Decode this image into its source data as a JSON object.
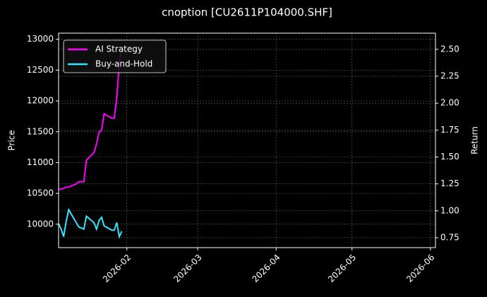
{
  "chart_data": {
    "type": "line",
    "title": "cnoption [CU2611P104000.SHF]",
    "ylabel": "Price",
    "y2label": "Return",
    "x": [
      "2026-01-05",
      "2026-01-06",
      "2026-01-07",
      "2026-01-08",
      "2026-01-09",
      "2026-01-12",
      "2026-01-13",
      "2026-01-14",
      "2026-01-15",
      "2026-01-16",
      "2026-01-19",
      "2026-01-20",
      "2026-01-21",
      "2026-01-22",
      "2026-01-23",
      "2026-01-26",
      "2026-01-27",
      "2026-01-28",
      "2026-01-29",
      "2026-01-30"
    ],
    "series": [
      {
        "name": "AI Strategy",
        "color": "#ff00ff",
        "axis": "y2",
        "values": [
          1.2,
          1.2,
          1.21,
          1.22,
          1.22,
          1.25,
          1.27,
          1.27,
          1.27,
          1.47,
          1.54,
          1.62,
          1.73,
          1.75,
          1.9,
          1.86,
          1.86,
          2.04,
          2.37,
          2.53
        ]
      },
      {
        "name": "Buy-and-Hold",
        "color": "#33e6ff",
        "axis": "y2",
        "values": [
          0.88,
          0.83,
          0.76,
          0.9,
          1.01,
          0.89,
          0.85,
          0.84,
          0.83,
          0.95,
          0.89,
          0.83,
          0.91,
          0.94,
          0.86,
          0.82,
          0.82,
          0.89,
          0.76,
          0.81
        ]
      }
    ],
    "xlim": [
      "2026-01-05",
      "2026-06-03"
    ],
    "xticks": [
      {
        "value": "2026-02-01",
        "label": "2026-02"
      },
      {
        "value": "2026-03-01",
        "label": "2026-03"
      },
      {
        "value": "2026-04-01",
        "label": "2026-04"
      },
      {
        "value": "2026-05-01",
        "label": "2026-05"
      },
      {
        "value": "2026-06-01",
        "label": "2026-06"
      }
    ],
    "ylim": [
      9620,
      13100
    ],
    "yticks": [
      10000,
      10500,
      11000,
      11500,
      12000,
      12500,
      13000
    ],
    "y2lim": [
      0.658,
      2.65
    ],
    "y2ticks": [
      0.75,
      {
        "value": 1.0,
        "label": "1.00"
      },
      1.25,
      {
        "value": 1.5,
        "label": "1.50"
      },
      1.75,
      {
        "value": 2.0,
        "label": "2.00"
      },
      2.25,
      {
        "value": 2.5,
        "label": "2.50"
      }
    ],
    "grid": true,
    "legend": "upper left"
  }
}
